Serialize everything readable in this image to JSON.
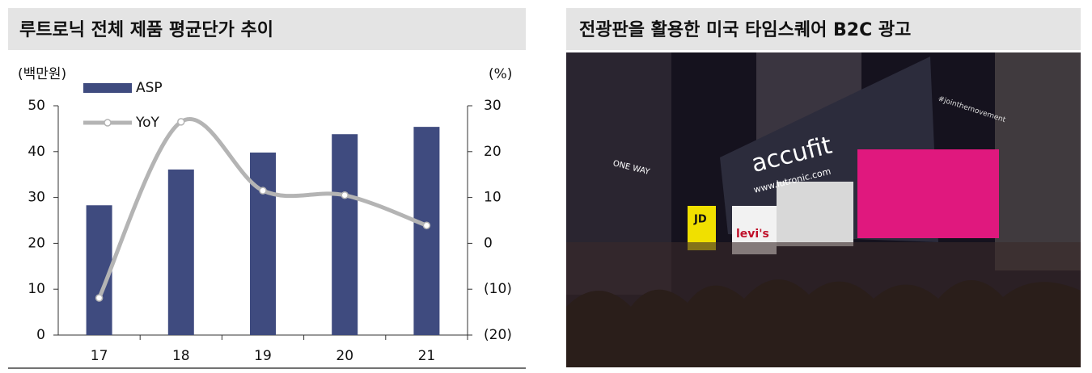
{
  "chart_data": {
    "type": "bar",
    "title": "루트로닉 전체 제품 평균단가 추이",
    "y_label": "(백만원)",
    "y2_label": "(%)",
    "categories": [
      "17",
      "18",
      "19",
      "20",
      "21"
    ],
    "series": [
      {
        "name": "ASP",
        "type": "bar",
        "color": "#3f4b7f",
        "values": [
          28.3,
          36.1,
          39.8,
          43.8,
          45.4
        ]
      },
      {
        "name": "YoY",
        "type": "line",
        "axis": "y2",
        "color": "#b4b4b4",
        "values": [
          -11.9,
          26.5,
          11.5,
          10.5,
          3.9
        ]
      }
    ],
    "ylim": [
      0,
      50
    ],
    "yticks": [
      0,
      10,
      20,
      30,
      40,
      50
    ],
    "y2lim": [
      -20,
      30
    ],
    "y2ticks": [
      {
        "value": -20,
        "label": "(20)"
      },
      {
        "value": -10,
        "label": "(10)"
      },
      0,
      10,
      20,
      30
    ],
    "grid": false,
    "legend": "top-left"
  },
  "photo_panel": {
    "title": "전광판을 활용한 미국 타임스퀘어 B2C 광고",
    "signs": [
      "accufit",
      "www.lutronic.com",
      "levi's",
      "ONE WAY",
      "JD",
      "#jointhemovement"
    ]
  }
}
